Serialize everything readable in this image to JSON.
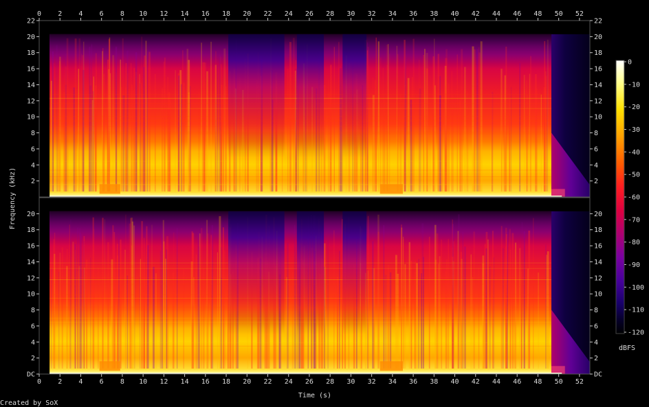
{
  "chart_data": {
    "type": "heatmap",
    "subtype": "spectrogram",
    "channels": 2,
    "xlabel": "Time (s)",
    "ylabel": "Frequency (kHz)",
    "xlim": [
      0,
      53
    ],
    "ylim": [
      0,
      22
    ],
    "x_ticks": [
      "0",
      "2",
      "4",
      "6",
      "8",
      "10",
      "12",
      "14",
      "16",
      "18",
      "20",
      "22",
      "24",
      "26",
      "28",
      "30",
      "32",
      "34",
      "36",
      "38",
      "40",
      "42",
      "44",
      "46",
      "48",
      "50",
      "52"
    ],
    "y_ticks_top": [
      "2",
      "4",
      "6",
      "8",
      "10",
      "12",
      "14",
      "16",
      "18",
      "20",
      "22"
    ],
    "y_ticks_bottom": [
      "DC",
      "2",
      "4",
      "6",
      "8",
      "10",
      "12",
      "14",
      "16",
      "18",
      "20"
    ],
    "colorbar": {
      "label": "dBFS",
      "range": [
        -120,
        0
      ],
      "ticks": [
        "0",
        "-10",
        "-20",
        "-30",
        "-40",
        "-50",
        "-60",
        "-70",
        "-80",
        "-90",
        "-100",
        "-110",
        "-120"
      ],
      "colors": [
        "#ffffff",
        "#ffff80",
        "#ffe000",
        "#ffa000",
        "#ff6000",
        "#ff2020",
        "#e0003a",
        "#b00070",
        "#7a00a0",
        "#4a0098",
        "#220070",
        "#0a0040",
        "#000000"
      ]
    },
    "audio_end_s": 49.3,
    "quiet_passages_s": [
      [
        18.2,
        23.6
      ],
      [
        24.8,
        27.4
      ],
      [
        29.2,
        31.5
      ]
    ],
    "footer": "Created by SoX"
  }
}
